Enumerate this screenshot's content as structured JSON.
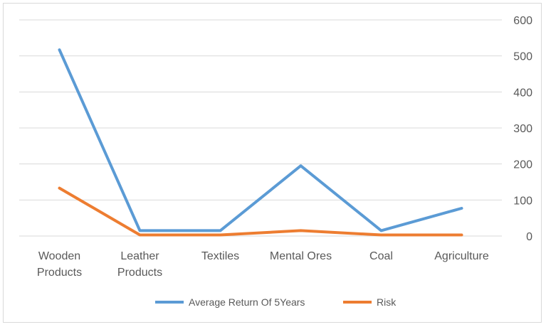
{
  "chart_data": {
    "type": "line",
    "categories": [
      [
        "Wooden",
        "Products"
      ],
      [
        "Leather",
        "Products"
      ],
      [
        "Textiles"
      ],
      [
        "Mental Ores"
      ],
      [
        "Coal"
      ],
      [
        "Agriculture"
      ]
    ],
    "series": [
      {
        "name": "Average Return Of 5Years",
        "color": "#5b9bd5",
        "values": [
          517,
          15,
          15,
          195,
          15,
          77
        ]
      },
      {
        "name": "Risk",
        "color": "#ed7d31",
        "values": [
          133,
          3,
          3,
          15,
          3,
          3
        ]
      }
    ],
    "y_axis": {
      "position": "right",
      "min": 0,
      "max": 600,
      "step": 100,
      "ticks": [
        "0",
        "100",
        "200",
        "300",
        "400",
        "500",
        "600"
      ]
    },
    "grid": true,
    "legend": "bottom"
  }
}
